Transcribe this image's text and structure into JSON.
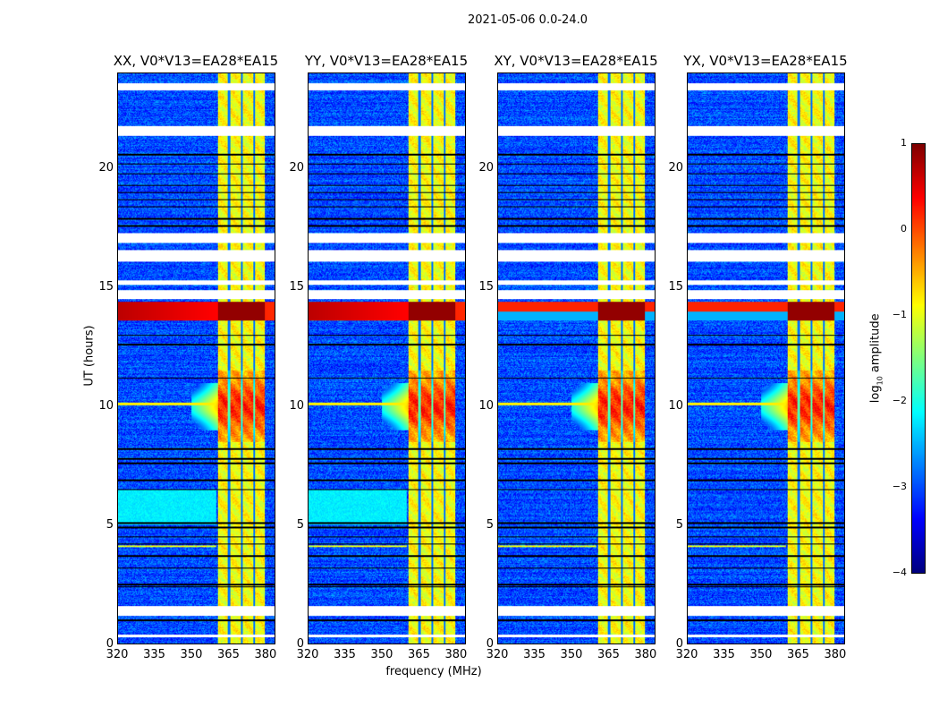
{
  "chart_data": {
    "type": "heatmap",
    "suptitle": "2021-05-06 0.0-24.0",
    "xlabel": "frequency (MHz)",
    "ylabel": "UT (hours)",
    "xlim": [
      320,
      384
    ],
    "ylim": [
      0,
      24
    ],
    "xticks": [
      "320",
      "335",
      "350",
      "365",
      "380"
    ],
    "yticks": [
      "0",
      "5",
      "10",
      "15",
      "20"
    ],
    "xtick_values": [
      320,
      335,
      350,
      365,
      380
    ],
    "ytick_values": [
      0,
      5,
      10,
      15,
      20
    ],
    "panels": [
      {
        "title": "XX, V0*V13=EA28*EA15",
        "pol": "XX"
      },
      {
        "title": "YY, V0*V13=EA28*EA15",
        "pol": "YY"
      },
      {
        "title": "XY, V0*V13=EA28*EA15",
        "pol": "XY"
      },
      {
        "title": "YX, V0*V13=EA28*EA15",
        "pol": "YX"
      }
    ],
    "band_MHz": [
      360.5,
      380
    ],
    "subband_edges_MHz": [
      365.2,
      370.3,
      375.4
    ],
    "flagged_hours": [
      [
        23.3,
        23.6
      ],
      [
        21.4,
        21.8
      ],
      [
        16.9,
        17.3
      ],
      [
        16.1,
        16.6
      ],
      [
        15.1,
        15.3
      ],
      [
        14.5,
        14.9
      ],
      [
        1.2,
        1.6
      ],
      [
        0.3,
        0.4
      ]
    ],
    "rfi_hours": [
      [
        13.6,
        14.4
      ],
      [
        8.5,
        11.5
      ]
    ],
    "colormap": "jet",
    "colorbar": {
      "label_prefix": "log",
      "label_sub": "10",
      "label_suffix": " amplitude",
      "range": [
        -4,
        1
      ],
      "ticks": [
        "1",
        "0",
        "−1",
        "−2",
        "−3",
        "−4"
      ],
      "tick_values": [
        1,
        0,
        -1,
        -2,
        -3,
        -4
      ]
    }
  }
}
